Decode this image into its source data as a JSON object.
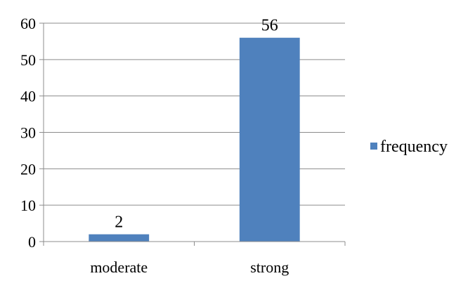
{
  "chart_data": {
    "type": "bar",
    "categories": [
      "moderate",
      "strong"
    ],
    "series": [
      {
        "name": "frequency",
        "values": [
          2,
          56
        ],
        "color": "#4f81bd"
      }
    ],
    "data_labels": [
      "2",
      "56"
    ],
    "ylim": [
      0,
      60
    ],
    "y_ticks": [
      0,
      10,
      20,
      30,
      40,
      50,
      60
    ],
    "grid": true,
    "legend": {
      "position": "right"
    }
  }
}
